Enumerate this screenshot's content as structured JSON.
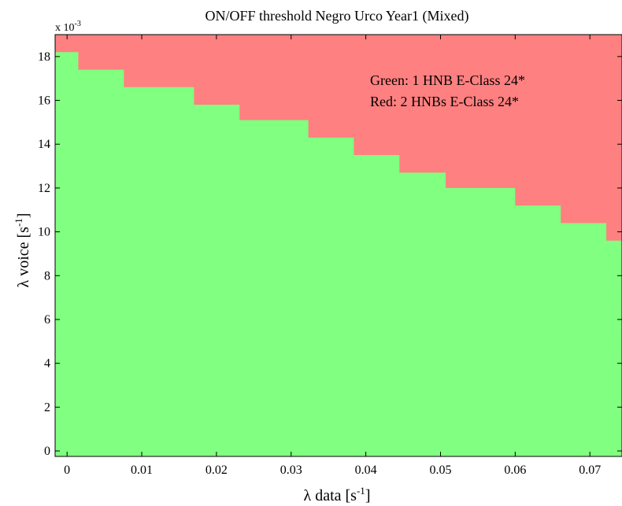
{
  "chart_data": {
    "type": "heatmap",
    "title": "ON/OFF threshold Negro Urco Year1 (Mixed)",
    "xlabel": "λ  data [s",
    "xlabel_sup": "-1",
    "xlabel_end": "]",
    "ylabel": "λ  voice [s",
    "ylabel_sup": "-1",
    "ylabel_end": "]",
    "y_multiplier_base": "x 10",
    "y_multiplier_exp": "-3",
    "xlim": [
      -0.0016,
      0.0743
    ],
    "ylim": [
      -0.00025,
      0.019
    ],
    "x_ticks": [
      0,
      0.01,
      0.02,
      0.03,
      0.04,
      0.05,
      0.06,
      0.07
    ],
    "x_tick_labels": [
      "0",
      "0.01",
      "0.02",
      "0.03",
      "0.04",
      "0.05",
      "0.06",
      "0.07"
    ],
    "y_ticks": [
      0,
      0.002,
      0.004,
      0.006,
      0.008,
      0.01,
      0.012,
      0.014,
      0.016,
      0.018
    ],
    "y_tick_labels": [
      "0",
      "2",
      "4",
      "6",
      "8",
      "10",
      "12",
      "14",
      "16",
      "18"
    ],
    "regions": [
      {
        "label": "Green: 1 HNB E-Class 24*",
        "color": "#80ff80"
      },
      {
        "label": "Red: 2 HNBs E-Class 24*",
        "color": "#ff8080"
      }
    ],
    "threshold_steps": [
      {
        "x_start": -0.0016,
        "x_end": 0.0015,
        "y": 0.0182
      },
      {
        "x_start": 0.0015,
        "x_end": 0.0076,
        "y": 0.0174
      },
      {
        "x_start": 0.0076,
        "x_end": 0.017,
        "y": 0.0166
      },
      {
        "x_start": 0.017,
        "x_end": 0.0231,
        "y": 0.0158
      },
      {
        "x_start": 0.0231,
        "x_end": 0.0323,
        "y": 0.0151
      },
      {
        "x_start": 0.0323,
        "x_end": 0.0384,
        "y": 0.0143
      },
      {
        "x_start": 0.0384,
        "x_end": 0.0445,
        "y": 0.0135
      },
      {
        "x_start": 0.0445,
        "x_end": 0.0507,
        "y": 0.0127
      },
      {
        "x_start": 0.0507,
        "x_end": 0.06,
        "y": 0.012
      },
      {
        "x_start": 0.06,
        "x_end": 0.0661,
        "y": 0.0112
      },
      {
        "x_start": 0.0661,
        "x_end": 0.0722,
        "y": 0.0104
      },
      {
        "x_start": 0.0722,
        "x_end": 0.0743,
        "y": 0.0096
      }
    ]
  }
}
